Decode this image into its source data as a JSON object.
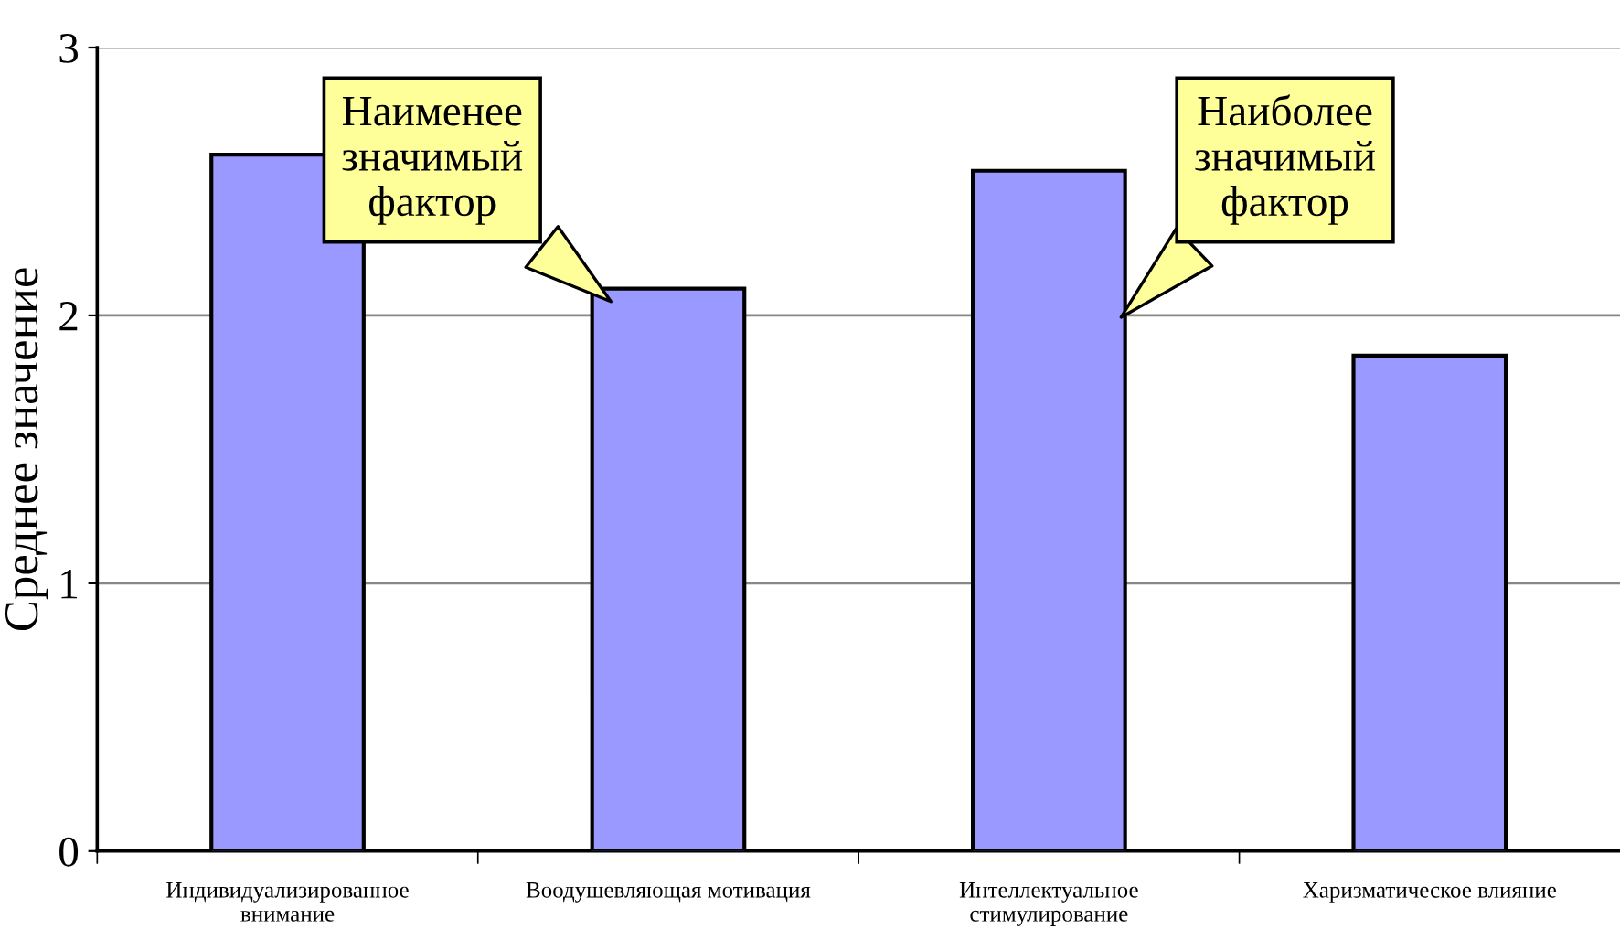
{
  "chart_data": {
    "type": "bar",
    "ylabel": "Среднее значение",
    "categories": [
      "Индивидуализированное\nвнимание",
      "Воодушевляющая мотивация",
      "Интеллектуальное\nстимулирование",
      "Харизматическое влияние"
    ],
    "values": [
      2.6,
      2.1,
      2.54,
      1.85
    ],
    "color": "#9999ff",
    "ylim": [
      0,
      3
    ],
    "yticks": [
      0,
      1,
      2,
      3
    ],
    "grid": "y",
    "annotations": [
      "Наименее\nзначимый\nфактор",
      "Наиболее\nзначимый\nфактор"
    ]
  }
}
